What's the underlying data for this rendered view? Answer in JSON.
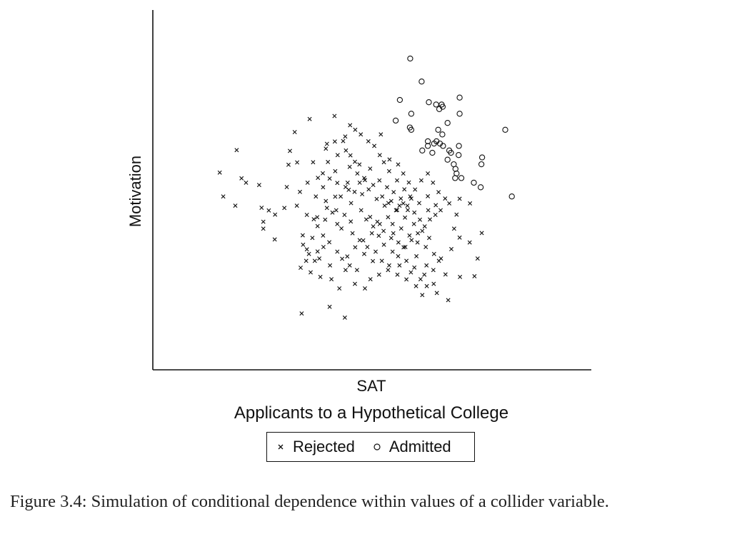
{
  "chart_data": {
    "type": "scatter",
    "title": "Applicants to a Hypothetical College",
    "xlabel": "SAT",
    "ylabel": "Motivation",
    "x_ticks": "none",
    "y_ticks": "none",
    "grid": false,
    "legend_position": "bottom-center",
    "series": [
      {
        "name": "Rejected",
        "marker": "x",
        "color": "#111111",
        "points": [
          [
            1.29,
            6.02
          ],
          [
            0.8,
            5.04
          ],
          [
            0.9,
            4.0
          ],
          [
            1.25,
            3.6
          ],
          [
            1.43,
            4.79
          ],
          [
            1.56,
            4.6
          ],
          [
            1.94,
            4.5
          ],
          [
            2.01,
            3.51
          ],
          [
            2.06,
            2.9
          ],
          [
            2.06,
            2.6
          ],
          [
            2.22,
            3.39
          ],
          [
            2.4,
            3.21
          ],
          [
            2.39,
            2.13
          ],
          [
            2.67,
            3.5
          ],
          [
            2.74,
            4.41
          ],
          [
            2.79,
            5.38
          ],
          [
            2.83,
            5.98
          ],
          [
            3.04,
            5.48
          ],
          [
            3.4,
            7.37
          ],
          [
            2.97,
            6.8
          ],
          [
            3.03,
            3.6
          ],
          [
            3.2,
            2.31
          ],
          [
            3.21,
            1.9
          ],
          [
            3.32,
            1.7
          ],
          [
            3.38,
            1.5
          ],
          [
            3.32,
            3.2
          ],
          [
            3.52,
            3.01
          ],
          [
            3.5,
            5.49
          ],
          [
            3.64,
            4.81
          ],
          [
            3.79,
            4.4
          ],
          [
            3.87,
            6.08
          ],
          [
            3.93,
            5.5
          ],
          [
            4.13,
            6.39
          ],
          [
            4.14,
            5.1
          ],
          [
            4.37,
            6.41
          ],
          [
            4.45,
            6.0
          ],
          [
            4.58,
            5.79
          ],
          [
            4.71,
            5.51
          ],
          [
            4.84,
            5.39
          ],
          [
            4.98,
            4.8
          ],
          [
            5.15,
            5.21
          ],
          [
            4.5,
            4.6
          ],
          [
            4.3,
            4.0
          ],
          [
            4.6,
            3.71
          ],
          [
            4.89,
            3.4
          ],
          [
            5.04,
            3.0
          ],
          [
            5.24,
            2.7
          ],
          [
            5.4,
            2.29
          ],
          [
            5.55,
            1.9
          ],
          [
            5.8,
            1.6
          ],
          [
            5.96,
            1.4
          ],
          [
            6.17,
            1.8
          ],
          [
            6.35,
            2.1
          ],
          [
            6.53,
            2.4
          ],
          [
            6.73,
            2.7
          ],
          [
            6.88,
            3.0
          ],
          [
            7.04,
            3.2
          ],
          [
            7.19,
            3.4
          ],
          [
            6.34,
            3.91
          ],
          [
            6.14,
            4.31
          ],
          [
            5.93,
            4.7
          ],
          [
            5.7,
            5.1
          ],
          [
            5.55,
            5.49
          ],
          [
            5.43,
            5.8
          ],
          [
            5.27,
            6.2
          ],
          [
            3.63,
            2.71
          ],
          [
            3.79,
            2.3
          ],
          [
            3.97,
            2.01
          ],
          [
            4.2,
            1.6
          ],
          [
            4.49,
            1.39
          ],
          [
            4.72,
            1.79
          ],
          [
            4.95,
            2.09
          ],
          [
            5.2,
            2.4
          ],
          [
            5.43,
            2.8
          ],
          [
            5.67,
            3.1
          ],
          [
            5.9,
            3.4
          ],
          [
            6.11,
            3.7
          ],
          [
            6.31,
            4.0
          ],
          [
            6.45,
            4.3
          ],
          [
            6.63,
            4.7
          ],
          [
            6.82,
            5.0
          ],
          [
            6.97,
            4.6
          ],
          [
            7.13,
            4.19
          ],
          [
            7.32,
            3.91
          ],
          [
            7.44,
            3.7
          ],
          [
            7.65,
            3.21
          ],
          [
            7.58,
            2.6
          ],
          [
            7.74,
            2.21
          ],
          [
            7.5,
            1.71
          ],
          [
            7.14,
            1.2
          ],
          [
            6.98,
            0.8
          ],
          [
            7.33,
            0.61
          ],
          [
            6.78,
            1.0
          ],
          [
            6.49,
            1.4
          ],
          [
            6.12,
            1.79
          ],
          [
            5.82,
            2.4
          ],
          [
            5.57,
            3.6
          ],
          [
            5.34,
            3.89
          ],
          [
            5.11,
            4.31
          ],
          [
            4.85,
            4.6
          ],
          [
            4.53,
            4.29
          ],
          [
            4.14,
            3.99
          ],
          [
            3.9,
            3.5
          ],
          [
            3.62,
            3.1
          ],
          [
            3.48,
            2.2
          ],
          [
            3.3,
            1.2
          ],
          [
            3.14,
            0.9
          ],
          [
            3.43,
            0.7
          ],
          [
            3.71,
            0.5
          ],
          [
            4.26,
            0.0
          ],
          [
            4.03,
            0.4
          ],
          [
            4.71,
            0.2
          ],
          [
            5.0,
            0.0
          ],
          [
            5.16,
            0.4
          ],
          [
            5.41,
            0.6
          ],
          [
            5.67,
            0.8
          ],
          [
            6.0,
            1.0
          ],
          [
            6.33,
            0.7
          ],
          [
            6.61,
            0.4
          ],
          [
            6.79,
            0.1
          ],
          [
            7.08,
            -0.2
          ],
          [
            7.41,
            -0.51
          ],
          [
            7.75,
            0.5
          ],
          [
            8.17,
            0.53
          ],
          [
            8.26,
            1.3
          ],
          [
            8.03,
            2.0
          ],
          [
            8.38,
            2.41
          ],
          [
            7.74,
            3.9
          ],
          [
            8.04,
            3.7
          ],
          [
            3.17,
            -1.09
          ],
          [
            3.98,
            -0.8
          ],
          [
            4.42,
            -1.27
          ],
          [
            4.88,
            6.7
          ],
          [
            5.1,
            6.4
          ],
          [
            5.46,
            6.7
          ],
          [
            4.92,
            4.1
          ],
          [
            4.59,
            2.91
          ],
          [
            4.32,
            2.61
          ],
          [
            4.06,
            3.3
          ],
          [
            3.8,
            1.8
          ],
          [
            3.55,
            1.2
          ],
          [
            3.12,
            4.2
          ],
          [
            3.34,
            4.6
          ],
          [
            3.58,
            4.0
          ],
          [
            3.87,
            3.8
          ],
          [
            4.17,
            3.4
          ],
          [
            4.41,
            3.2
          ],
          [
            4.64,
            2.4
          ],
          [
            4.85,
            2.1
          ],
          [
            5.07,
            1.8
          ],
          [
            5.31,
            1.6
          ],
          [
            5.49,
            1.2
          ],
          [
            5.7,
            1.0
          ],
          [
            5.94,
            0.6
          ],
          [
            6.2,
            0.39
          ],
          [
            6.48,
            0.1
          ],
          [
            6.66,
            -0.29
          ],
          [
            5.68,
            3.71
          ],
          [
            5.93,
            3.41
          ],
          [
            6.16,
            3.08
          ],
          [
            6.42,
            2.8
          ],
          [
            6.66,
            2.5
          ],
          [
            6.86,
            2.2
          ],
          [
            4.34,
            1.29
          ],
          [
            4.56,
            1.0
          ],
          [
            4.77,
            0.8
          ],
          [
            4.98,
            1.5
          ],
          [
            5.23,
            1.19
          ],
          [
            3.63,
            1.61
          ],
          [
            3.99,
            1.0
          ],
          [
            4.2,
            2.8
          ],
          [
            3.85,
            2.99
          ],
          [
            3.68,
            1.3
          ],
          [
            4.44,
            0.8
          ],
          [
            5.8,
            2.8
          ],
          [
            6.05,
            2.61
          ],
          [
            6.29,
            2.3
          ],
          [
            6.52,
            2.0
          ],
          [
            6.76,
            1.8
          ],
          [
            7.0,
            1.5
          ],
          [
            7.2,
            1.3
          ],
          [
            5.15,
            3.11
          ],
          [
            5.36,
            2.9
          ],
          [
            5.54,
            2.5
          ],
          [
            5.76,
            2.19
          ],
          [
            5.97,
            2.0
          ],
          [
            6.2,
            1.2
          ],
          [
            6.43,
            0.91
          ],
          [
            6.72,
            0.6
          ],
          [
            6.99,
            0.2
          ],
          [
            4.56,
            5.29
          ],
          [
            4.78,
            5.0
          ],
          [
            5.0,
            4.71
          ],
          [
            5.24,
            4.5
          ],
          [
            5.42,
            4.7
          ],
          [
            5.64,
            4.4
          ],
          [
            5.83,
            4.19
          ],
          [
            6.04,
            3.91
          ],
          [
            6.23,
            3.6
          ],
          [
            6.43,
            3.3
          ],
          [
            6.59,
            2.99
          ],
          [
            3.78,
            5.01
          ],
          [
            3.98,
            4.78
          ],
          [
            4.2,
            4.59
          ],
          [
            4.44,
            4.41
          ],
          [
            4.7,
            4.2
          ],
          [
            5.5,
            4.0
          ],
          [
            5.76,
            3.8
          ],
          [
            6.0,
            3.6
          ],
          [
            6.24,
            3.41
          ],
          [
            6.57,
            3.71
          ],
          [
            6.83,
            3.4
          ],
          [
            7.05,
            3.62
          ],
          [
            6.82,
            4.01
          ],
          [
            4.43,
            6.61
          ],
          [
            4.21,
            5.8
          ],
          [
            3.9,
            6.29
          ],
          [
            5.71,
            5.61
          ],
          [
            5.96,
            5.39
          ],
          [
            6.11,
            5.0
          ],
          [
            6.27,
            4.61
          ],
          [
            4.72,
            6.9
          ],
          [
            4.12,
            7.5
          ],
          [
            4.57,
            7.1
          ]
        ]
      },
      {
        "name": "Admitted",
        "marker": "o",
        "color": "#111111",
        "points": [
          [
            6.31,
            10.0
          ],
          [
            6.64,
            9.0
          ],
          [
            6.01,
            8.2
          ],
          [
            6.85,
            8.1
          ],
          [
            7.06,
            8.0
          ],
          [
            7.22,
            8.0
          ],
          [
            7.74,
            8.3
          ],
          [
            7.15,
            7.8
          ],
          [
            7.25,
            7.9
          ],
          [
            6.34,
            7.6
          ],
          [
            7.74,
            7.6
          ],
          [
            5.89,
            7.3
          ],
          [
            7.39,
            7.2
          ],
          [
            6.3,
            7.0
          ],
          [
            6.34,
            6.9
          ],
          [
            7.12,
            6.9
          ],
          [
            9.06,
            6.9
          ],
          [
            7.24,
            6.7
          ],
          [
            6.82,
            6.4
          ],
          [
            7.07,
            6.4
          ],
          [
            7.17,
            6.3
          ],
          [
            7.26,
            6.2
          ],
          [
            7.0,
            6.3
          ],
          [
            6.82,
            6.2
          ],
          [
            7.72,
            6.2
          ],
          [
            6.66,
            6.0
          ],
          [
            7.44,
            6.0
          ],
          [
            7.49,
            5.9
          ],
          [
            7.71,
            5.8
          ],
          [
            6.95,
            5.9
          ],
          [
            8.39,
            5.7
          ],
          [
            7.39,
            5.6
          ],
          [
            8.37,
            5.4
          ],
          [
            7.57,
            5.4
          ],
          [
            7.62,
            5.2
          ],
          [
            7.65,
            5.0
          ],
          [
            7.79,
            4.8
          ],
          [
            7.61,
            4.8
          ],
          [
            8.15,
            4.6
          ],
          [
            8.35,
            4.4
          ],
          [
            9.25,
            4.0
          ]
        ]
      }
    ]
  },
  "caption": "Figure 3.4:  Simulation of conditional dependence within values of a collider variable."
}
